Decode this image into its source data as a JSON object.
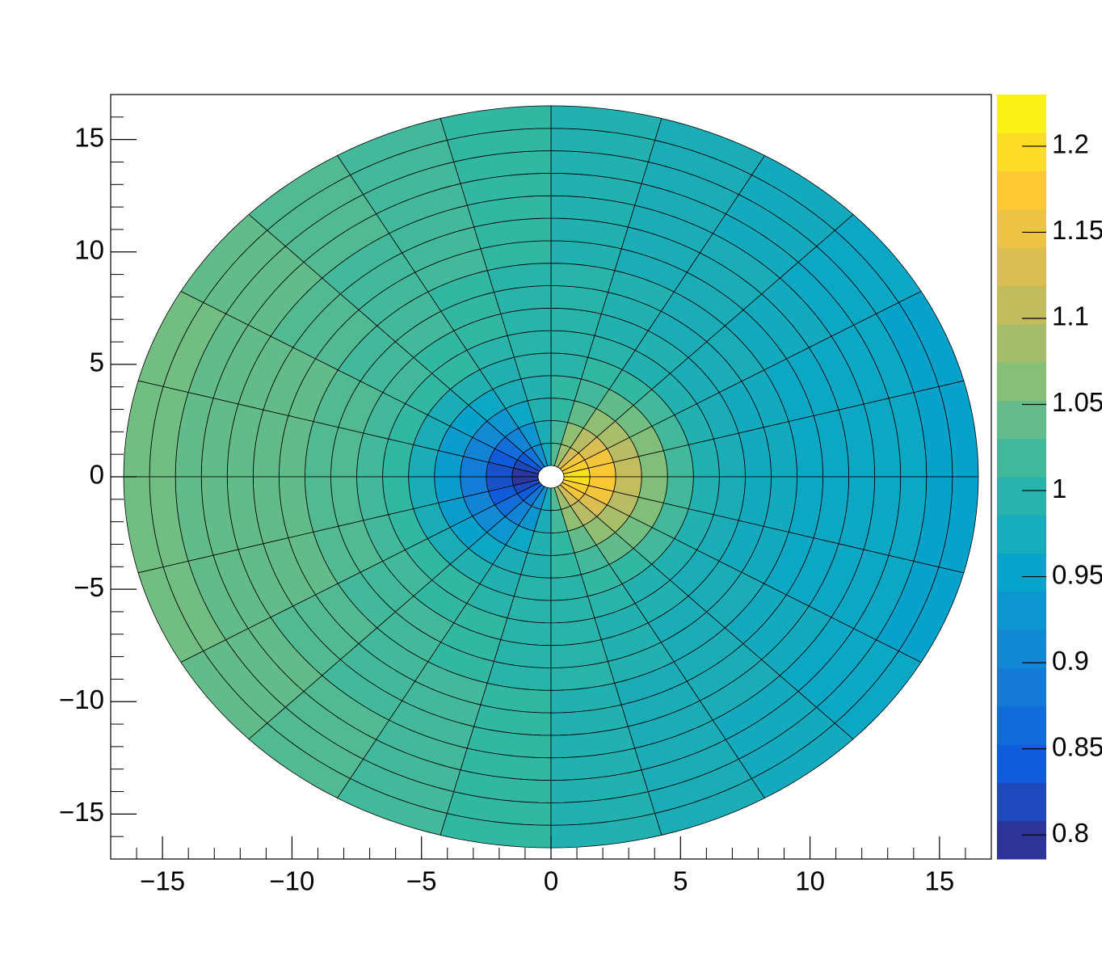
{
  "chart_data": {
    "type": "polar-heatmap",
    "r_edges": [
      0.5,
      1.5,
      2.5,
      3.5,
      4.5,
      5.5,
      6.5,
      7.5,
      8.5,
      9.5,
      10.5,
      11.5,
      12.5,
      13.5,
      14.5,
      15.5,
      16.5
    ],
    "theta_edges": [
      0,
      15,
      30,
      45,
      60,
      75,
      90,
      105,
      120,
      135,
      150,
      165,
      180,
      195,
      210,
      225,
      240,
      255,
      270,
      285,
      300,
      315,
      330,
      345,
      360
    ],
    "values": [
      [
        1.2,
        1.18,
        1.16,
        1.12,
        1.08,
        1.03,
        0.97,
        0.92,
        0.88,
        0.84,
        0.82,
        0.8,
        0.8,
        0.82,
        0.84,
        0.88,
        0.92,
        0.97,
        1.03,
        1.08,
        1.12,
        1.16,
        1.18,
        1.2
      ],
      [
        1.17,
        1.16,
        1.13,
        1.1,
        1.07,
        1.02,
        0.98,
        0.93,
        0.9,
        0.87,
        0.84,
        0.83,
        0.83,
        0.84,
        0.87,
        0.9,
        0.93,
        0.98,
        1.02,
        1.07,
        1.1,
        1.13,
        1.16,
        1.17
      ],
      [
        1.11,
        1.1,
        1.09,
        1.07,
        1.04,
        1.01,
        0.99,
        0.96,
        0.93,
        0.91,
        0.9,
        0.89,
        0.89,
        0.9,
        0.91,
        0.93,
        0.96,
        0.99,
        1.01,
        1.04,
        1.07,
        1.09,
        1.1,
        1.11
      ],
      [
        1.06,
        1.06,
        1.05,
        1.04,
        1.02,
        1.01,
        0.99,
        0.98,
        0.96,
        0.95,
        0.94,
        0.94,
        0.94,
        0.94,
        0.95,
        0.96,
        0.98,
        0.99,
        1.01,
        1.02,
        1.04,
        1.05,
        1.06,
        1.06
      ],
      [
        1.02,
        1.02,
        1.02,
        1.01,
        1.01,
        1.0,
        1.0,
        0.99,
        0.99,
        0.98,
        0.98,
        0.98,
        0.98,
        0.98,
        0.98,
        0.99,
        0.99,
        1.0,
        1.0,
        1.01,
        1.01,
        1.02,
        1.02,
        1.02
      ],
      [
        0.99,
        0.99,
        0.99,
        0.99,
        1.0,
        1.0,
        1.0,
        1.0,
        1.01,
        1.01,
        1.01,
        1.01,
        1.01,
        1.01,
        1.01,
        1.01,
        1.0,
        1.0,
        1.0,
        1.0,
        0.99,
        0.99,
        0.99,
        0.99
      ],
      [
        0.98,
        0.98,
        0.98,
        0.99,
        0.99,
        1.0,
        1.0,
        1.01,
        1.01,
        1.02,
        1.02,
        1.02,
        1.02,
        1.02,
        1.02,
        1.01,
        1.01,
        1.0,
        1.0,
        0.99,
        0.99,
        0.98,
        0.98,
        0.98
      ],
      [
        0.97,
        0.97,
        0.98,
        0.98,
        0.99,
        1.0,
        1.0,
        1.01,
        1.02,
        1.02,
        1.03,
        1.03,
        1.03,
        1.03,
        1.02,
        1.02,
        1.01,
        1.0,
        1.0,
        0.99,
        0.98,
        0.98,
        0.97,
        0.97
      ],
      [
        0.97,
        0.97,
        0.98,
        0.98,
        0.99,
        1.0,
        1.0,
        1.01,
        1.02,
        1.02,
        1.03,
        1.03,
        1.03,
        1.03,
        1.02,
        1.02,
        1.01,
        1.0,
        1.0,
        0.99,
        0.98,
        0.98,
        0.97,
        0.97
      ],
      [
        0.96,
        0.96,
        0.97,
        0.98,
        0.98,
        0.99,
        1.01,
        1.02,
        1.02,
        1.03,
        1.04,
        1.04,
        1.04,
        1.04,
        1.03,
        1.02,
        1.02,
        1.01,
        0.99,
        0.98,
        0.98,
        0.97,
        0.96,
        0.96
      ],
      [
        0.96,
        0.96,
        0.97,
        0.98,
        0.98,
        0.99,
        1.01,
        1.02,
        1.02,
        1.03,
        1.04,
        1.04,
        1.04,
        1.04,
        1.03,
        1.02,
        1.02,
        1.01,
        0.99,
        0.98,
        0.98,
        0.97,
        0.96,
        0.96
      ],
      [
        0.96,
        0.96,
        0.97,
        0.98,
        0.98,
        0.99,
        1.01,
        1.02,
        1.02,
        1.03,
        1.04,
        1.04,
        1.04,
        1.04,
        1.03,
        1.02,
        1.02,
        1.01,
        0.99,
        0.98,
        0.98,
        0.97,
        0.96,
        0.96
      ],
      [
        0.96,
        0.96,
        0.96,
        0.97,
        0.98,
        0.99,
        1.01,
        1.02,
        1.03,
        1.04,
        1.04,
        1.04,
        1.04,
        1.04,
        1.04,
        1.03,
        1.02,
        1.01,
        0.99,
        0.98,
        0.97,
        0.96,
        0.96,
        0.96
      ],
      [
        0.96,
        0.96,
        0.96,
        0.97,
        0.98,
        0.99,
        1.01,
        1.02,
        1.03,
        1.04,
        1.04,
        1.04,
        1.04,
        1.04,
        1.04,
        1.03,
        1.02,
        1.01,
        0.99,
        0.98,
        0.97,
        0.96,
        0.96,
        0.96
      ],
      [
        0.95,
        0.95,
        0.96,
        0.97,
        0.98,
        0.99,
        1.01,
        1.02,
        1.03,
        1.04,
        1.05,
        1.05,
        1.05,
        1.05,
        1.04,
        1.03,
        1.02,
        1.01,
        0.99,
        0.98,
        0.97,
        0.96,
        0.95,
        0.95
      ],
      [
        0.95,
        0.95,
        0.96,
        0.97,
        0.98,
        0.99,
        1.01,
        1.02,
        1.03,
        1.04,
        1.05,
        1.05,
        1.05,
        1.05,
        1.04,
        1.03,
        1.02,
        1.01,
        0.99,
        0.98,
        0.97,
        0.96,
        0.95,
        0.95
      ]
    ],
    "xlim": [
      -17,
      17
    ],
    "ylim": [
      -17,
      17
    ],
    "xticks": [
      {
        "value": -15,
        "label": "−15"
      },
      {
        "value": -10,
        "label": "−10"
      },
      {
        "value": -5,
        "label": "−5"
      },
      0,
      5,
      10,
      15
    ],
    "yticks": [
      {
        "value": -15,
        "label": "−15"
      },
      {
        "value": -10,
        "label": "−10"
      },
      {
        "value": -5,
        "label": "−5"
      },
      0,
      5,
      10,
      15
    ],
    "xminorticks": [
      -16,
      -14,
      -13,
      -12,
      -11,
      -9,
      -8,
      -7,
      -6,
      -4,
      -3,
      -2,
      -1,
      1,
      2,
      3,
      4,
      6,
      7,
      8,
      9,
      11,
      12,
      13,
      14,
      16
    ],
    "yminorticks": [
      -16,
      -14,
      -13,
      -12,
      -11,
      -9,
      -8,
      -7,
      -6,
      -4,
      -3,
      -2,
      -1,
      1,
      2,
      3,
      4,
      6,
      7,
      8,
      9,
      11,
      12,
      13,
      14,
      16
    ],
    "zlim": [
      0.786,
      1.23
    ],
    "zticks": [
      0.8,
      0.85,
      0.9,
      0.95,
      1,
      1.05,
      1.1,
      1.15,
      1.2
    ],
    "palette": [
      "#352a87",
      "#0f5cdd",
      "#1481d6",
      "#06a4ca",
      "#2eb7a4",
      "#87bf77",
      "#d1bb59",
      "#fec832",
      "#f9fb0e"
    ]
  }
}
